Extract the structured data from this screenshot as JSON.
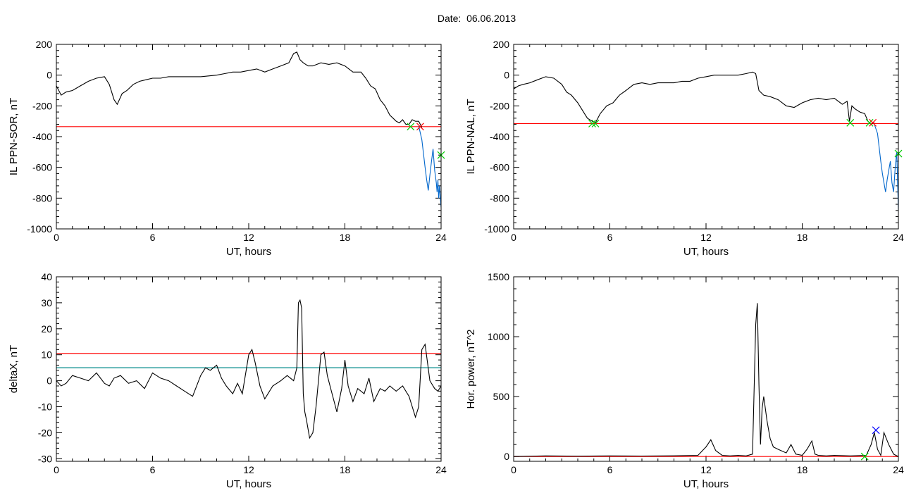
{
  "title": "Date:  06.06.2013",
  "chart_data": [
    {
      "type": "line",
      "ylabel": "IL PPN-SOR, nT",
      "xlabel": "UT, hours",
      "xlim": [
        0,
        24
      ],
      "ylim": [
        -1000,
        200
      ],
      "xticks": [
        0,
        6,
        12,
        18,
        24
      ],
      "yticks": [
        -1000,
        -800,
        -600,
        -400,
        -200,
        0,
        200
      ],
      "hlines": [
        {
          "y": -335,
          "color": "#ff0000"
        }
      ],
      "series": [
        {
          "color": "#000000",
          "x": [
            0,
            0.3,
            0.6,
            1.0,
            1.5,
            2.0,
            2.5,
            3.0,
            3.3,
            3.6,
            3.8,
            4.1,
            4.4,
            4.8,
            5.2,
            5.6,
            6.0,
            6.5,
            7.0,
            7.5,
            8.0,
            8.5,
            9.0,
            9.5,
            10.0,
            10.5,
            11.0,
            11.5,
            12.0,
            12.5,
            13.0,
            13.5,
            14.0,
            14.5,
            14.8,
            15.0,
            15.2,
            15.4,
            15.7,
            16.0,
            16.5,
            17.0,
            17.5,
            18.0,
            18.5,
            19.0,
            19.3,
            19.6,
            19.9,
            20.2,
            20.5,
            20.8,
            21.0,
            21.2,
            21.4,
            21.6,
            21.8,
            22.0,
            22.2,
            22.4,
            22.6,
            22.8
          ],
          "y": [
            -70,
            -130,
            -110,
            -100,
            -70,
            -40,
            -20,
            -10,
            -60,
            -160,
            -190,
            -120,
            -100,
            -60,
            -40,
            -30,
            -20,
            -20,
            -10,
            -10,
            -10,
            -10,
            -10,
            -5,
            0,
            10,
            20,
            20,
            30,
            40,
            20,
            40,
            60,
            80,
            140,
            150,
            100,
            80,
            60,
            60,
            80,
            70,
            80,
            60,
            20,
            20,
            -20,
            -70,
            -90,
            -160,
            -200,
            -260,
            -280,
            -300,
            -310,
            -290,
            -320,
            -320,
            -290,
            -300,
            -300,
            -340
          ]
        },
        {
          "color": "#0066cc",
          "x": [
            22.6,
            22.8,
            23.0,
            23.1,
            23.2,
            23.3,
            23.4,
            23.5,
            23.6,
            23.7,
            23.75,
            23.8,
            23.85,
            23.9,
            24.0
          ],
          "y": [
            -330,
            -420,
            -600,
            -680,
            -750,
            -650,
            -560,
            -480,
            -620,
            -700,
            -760,
            -680,
            -800,
            -720,
            -860
          ]
        }
      ],
      "markers": [
        {
          "x": 22.1,
          "y": -335,
          "color": "#00cc00"
        },
        {
          "x": 22.7,
          "y": -335,
          "color": "#ff0000"
        },
        {
          "x": 24.0,
          "y": -520,
          "color": "#00cc00"
        }
      ]
    },
    {
      "type": "line",
      "ylabel": "IL PPN-NAL, nT",
      "xlabel": "UT, hours",
      "xlim": [
        0,
        24
      ],
      "ylim": [
        -1000,
        200
      ],
      "xticks": [
        0,
        6,
        12,
        18,
        24
      ],
      "yticks": [
        -1000,
        -800,
        -600,
        -400,
        -200,
        0,
        200
      ],
      "hlines": [
        {
          "y": -315,
          "color": "#ff0000"
        }
      ],
      "series": [
        {
          "color": "#000000",
          "x": [
            0,
            0.3,
            0.6,
            1.0,
            1.5,
            2.0,
            2.5,
            3.0,
            3.3,
            3.6,
            4.0,
            4.3,
            4.6,
            4.9,
            5.1,
            5.4,
            5.8,
            6.2,
            6.6,
            7.0,
            7.5,
            8.0,
            8.5,
            9.0,
            9.5,
            10.0,
            10.5,
            11.0,
            11.5,
            12.0,
            12.5,
            13.0,
            13.5,
            14.0,
            14.5,
            14.9,
            15.1,
            15.3,
            15.6,
            16.0,
            16.5,
            17.0,
            17.5,
            18.0,
            18.5,
            19.0,
            19.5,
            20.0,
            20.5,
            20.8,
            20.95,
            21.1,
            21.3,
            21.6,
            21.9,
            22.1,
            22.3,
            22.5
          ],
          "y": [
            -90,
            -70,
            -60,
            -50,
            -30,
            -10,
            -20,
            -60,
            -110,
            -130,
            -180,
            -230,
            -280,
            -300,
            -310,
            -250,
            -200,
            -180,
            -130,
            -100,
            -60,
            -50,
            -60,
            -50,
            -50,
            -50,
            -40,
            -40,
            -20,
            -10,
            0,
            0,
            0,
            0,
            10,
            20,
            10,
            -100,
            -130,
            -140,
            -160,
            -200,
            -210,
            -180,
            -160,
            -150,
            -160,
            -150,
            -190,
            -170,
            -300,
            -200,
            -220,
            -240,
            -250,
            -300,
            -320,
            -310
          ]
        },
        {
          "color": "#0066cc",
          "x": [
            22.5,
            22.7,
            22.9,
            23.0,
            23.1,
            23.2,
            23.3,
            23.4,
            23.5,
            23.6,
            23.7,
            23.8,
            23.9,
            24.0
          ],
          "y": [
            -320,
            -380,
            -560,
            -640,
            -700,
            -760,
            -680,
            -620,
            -560,
            -700,
            -760,
            -600,
            -500,
            -880
          ]
        }
      ],
      "markers": [
        {
          "x": 4.9,
          "y": -315,
          "color": "#00cc00"
        },
        {
          "x": 5.1,
          "y": -315,
          "color": "#00cc00"
        },
        {
          "x": 21.0,
          "y": -310,
          "color": "#00cc00"
        },
        {
          "x": 22.2,
          "y": -310,
          "color": "#00cc00"
        },
        {
          "x": 22.4,
          "y": -310,
          "color": "#ff0000"
        },
        {
          "x": 24.0,
          "y": -510,
          "color": "#00cc00"
        }
      ]
    },
    {
      "type": "line",
      "ylabel": "deltaX, nT",
      "xlabel": "UT, hours",
      "xlim": [
        0,
        24
      ],
      "ylim": [
        -31,
        40
      ],
      "xticks": [
        0,
        6,
        12,
        18,
        24
      ],
      "yticks": [
        -30,
        -20,
        -10,
        0,
        10,
        20,
        30,
        40
      ],
      "hlines": [
        {
          "y": 10.5,
          "color": "#ff0000"
        },
        {
          "y": 5,
          "color": "#008b8b"
        }
      ],
      "series": [
        {
          "color": "#000000",
          "x": [
            0,
            0.3,
            0.6,
            1.0,
            1.5,
            2.0,
            2.5,
            3.0,
            3.3,
            3.6,
            4.0,
            4.5,
            5.0,
            5.5,
            6.0,
            6.5,
            7.0,
            7.5,
            8.0,
            8.5,
            9.0,
            9.3,
            9.6,
            10.0,
            10.3,
            10.6,
            11.0,
            11.3,
            11.6,
            12.0,
            12.2,
            12.4,
            12.7,
            13.0,
            13.2,
            13.5,
            14.0,
            14.4,
            14.8,
            15.0,
            15.1,
            15.2,
            15.3,
            15.4,
            15.5,
            15.6,
            15.8,
            16.0,
            16.2,
            16.5,
            16.7,
            16.9,
            17.2,
            17.5,
            17.8,
            18.0,
            18.2,
            18.5,
            18.8,
            19.2,
            19.5,
            19.8,
            20.2,
            20.5,
            20.8,
            21.2,
            21.6,
            22.0,
            22.4,
            22.6,
            22.8,
            23.0,
            23.3,
            23.6,
            23.8,
            24.0
          ],
          "y": [
            0,
            -2,
            -1,
            2,
            1,
            0,
            3,
            -1,
            -2,
            1,
            2,
            -1,
            0,
            -3,
            3,
            1,
            0,
            -2,
            -4,
            -6,
            2,
            5,
            4,
            6,
            1,
            -2,
            -5,
            -1,
            -5,
            10,
            12,
            7,
            -2,
            -7,
            -5,
            -2,
            0,
            2,
            0,
            5,
            30,
            31,
            28,
            -5,
            -12,
            -15,
            -22,
            -20,
            -10,
            10,
            11,
            2,
            -5,
            -12,
            -3,
            8,
            -2,
            -8,
            -3,
            -5,
            1,
            -8,
            -3,
            -4,
            -2,
            -4,
            -2,
            -6,
            -14,
            -10,
            12,
            14,
            0,
            -3,
            -4,
            -2
          ]
        }
      ],
      "markers": []
    },
    {
      "type": "line",
      "ylabel": "Hor. power, nT^2",
      "xlabel": "UT, hours",
      "xlim": [
        0,
        24
      ],
      "ylim": [
        -40,
        1500
      ],
      "xticks": [
        0,
        6,
        12,
        18,
        24
      ],
      "yticks": [
        0,
        500,
        1000,
        1500
      ],
      "hlines": [
        {
          "y": 0,
          "color": "#ff0000"
        }
      ],
      "series": [
        {
          "color": "#000000",
          "x": [
            0,
            2,
            4,
            6,
            8,
            10,
            11.5,
            12.0,
            12.3,
            12.6,
            13.0,
            13.5,
            14.0,
            14.5,
            14.9,
            15.1,
            15.2,
            15.3,
            15.4,
            15.5,
            15.6,
            15.8,
            16.0,
            16.2,
            16.5,
            17.0,
            17.3,
            17.6,
            18.0,
            18.3,
            18.6,
            18.8,
            19.0,
            19.5,
            20.0,
            21.0,
            22.0,
            22.3,
            22.5,
            22.7,
            22.9,
            23.1,
            23.4,
            23.7,
            24.0
          ],
          "y": [
            0,
            5,
            3,
            5,
            4,
            6,
            10,
            80,
            140,
            50,
            10,
            5,
            10,
            5,
            20,
            1100,
            1280,
            600,
            100,
            400,
            500,
            300,
            150,
            80,
            60,
            30,
            100,
            20,
            10,
            60,
            130,
            20,
            10,
            5,
            10,
            5,
            10,
            100,
            200,
            60,
            10,
            200,
            100,
            20,
            0
          ]
        }
      ],
      "markers": [
        {
          "x": 21.9,
          "y": 0,
          "color": "#00cc00"
        },
        {
          "x": 22.6,
          "y": 220,
          "color": "#0000ff"
        }
      ]
    }
  ]
}
